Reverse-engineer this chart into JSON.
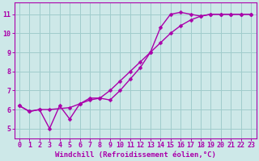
{
  "xlabel": "Windchill (Refroidissement éolien,°C)",
  "bg_color": "#cde8e8",
  "line_color": "#aa00aa",
  "grid_color": "#a0cccc",
  "xlim": [
    -0.5,
    23.5
  ],
  "ylim": [
    4.5,
    11.6
  ],
  "xticks": [
    0,
    1,
    2,
    3,
    4,
    5,
    6,
    7,
    8,
    9,
    10,
    11,
    12,
    13,
    14,
    15,
    16,
    17,
    18,
    19,
    20,
    21,
    22,
    23
  ],
  "yticks": [
    5,
    6,
    7,
    8,
    9,
    10,
    11
  ],
  "line1_x": [
    0,
    1,
    2,
    3,
    4,
    5,
    6,
    7,
    8,
    9,
    10,
    11,
    12,
    13,
    14,
    15,
    16,
    17,
    18,
    19,
    20,
    21,
    22,
    23
  ],
  "line1_y": [
    6.2,
    5.9,
    6.0,
    5.0,
    6.2,
    5.5,
    6.3,
    6.6,
    6.6,
    6.5,
    7.0,
    7.6,
    8.2,
    9.0,
    10.3,
    11.0,
    11.1,
    11.0,
    10.9,
    11.0,
    11.0,
    11.0,
    11.0,
    11.0
  ],
  "line2_x": [
    0,
    1,
    2,
    3,
    5,
    6,
    7,
    8,
    9,
    10,
    11,
    12,
    13,
    14,
    15,
    16,
    17,
    18,
    19,
    20,
    21,
    22,
    23
  ],
  "line2_y": [
    6.2,
    5.9,
    6.0,
    6.0,
    6.1,
    6.3,
    6.5,
    6.6,
    7.0,
    7.5,
    8.0,
    8.5,
    9.0,
    9.5,
    10.0,
    10.4,
    10.7,
    10.9,
    11.0,
    11.0,
    11.0,
    11.0,
    11.0
  ],
  "marker": "D",
  "marker_size": 2.5,
  "linewidth": 1.0,
  "font_size": 6.5,
  "tick_font_size": 6
}
